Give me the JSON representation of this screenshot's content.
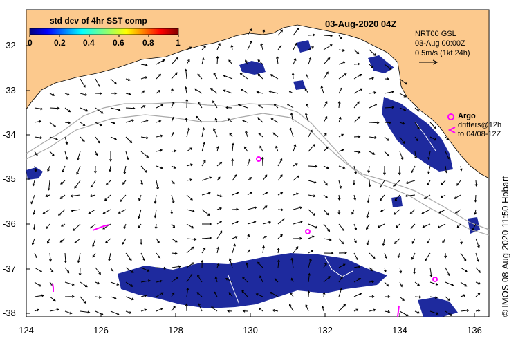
{
  "title": "03-Aug-2020 04Z",
  "colorbar": {
    "label": "std dev of 4hr SST comp",
    "ticks": [
      "0",
      "0.2",
      "0.4",
      "0.6",
      "0.8",
      "1"
    ]
  },
  "legend": {
    "product": "NRT00 GSL",
    "time": "03-Aug 00:00Z",
    "scale": "0.5m/s (1kt 24h)"
  },
  "argo": {
    "label": "Argo",
    "drifters_line1": "drifters@12h",
    "drifters_line2": "to 04/08-12Z"
  },
  "axes": {
    "y_ticks": [
      "-32",
      "-33",
      "-34",
      "-35",
      "-36",
      "-37",
      "-38"
    ],
    "x_ticks": [
      "124",
      "126",
      "128",
      "130",
      "132",
      "134",
      "136"
    ]
  },
  "credit": "© IMOS 08-Aug-2020 11:50 Hobart",
  "colors": {
    "land": "#fcc98d",
    "sst_patch": "#1e2a9e",
    "argo": "#ff00ff",
    "isobath": "#a9a9a9"
  }
}
